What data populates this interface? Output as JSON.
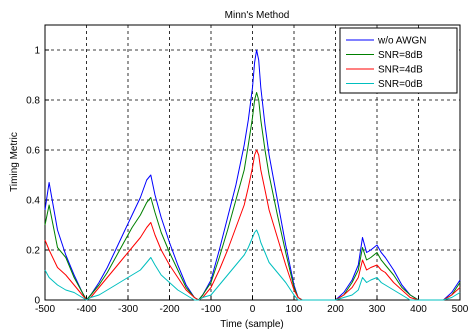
{
  "chart_data": {
    "type": "line",
    "title": "Minn's Method",
    "xlabel": "Time (sample)",
    "ylabel": "Timing Metric",
    "xlim": [
      -500,
      500
    ],
    "ylim": [
      0,
      1.1
    ],
    "xticks": [
      -500,
      -400,
      -300,
      -200,
      -100,
      0,
      100,
      200,
      300,
      400,
      500
    ],
    "yticks": [
      0,
      0.2,
      0.4,
      0.6,
      0.8,
      1
    ],
    "ytick_labels": [
      "0",
      "0.2",
      "0.4",
      "0.6",
      "0.8",
      "1"
    ],
    "grid": true,
    "legend_position": "top-right",
    "series": [
      {
        "name": "w/o AWGN",
        "color": "#0000ff",
        "x": [
          -500,
          -490,
          -470,
          -450,
          -430,
          -410,
          -400,
          -390,
          -370,
          -350,
          -330,
          -310,
          -290,
          -270,
          -255,
          -245,
          -235,
          -220,
          -200,
          -180,
          -160,
          -140,
          -130,
          -120,
          -100,
          -80,
          -60,
          -40,
          -20,
          -10,
          0,
          5,
          10,
          15,
          20,
          30,
          40,
          60,
          80,
          100,
          110,
          120,
          140,
          160,
          180,
          200,
          220,
          240,
          255,
          265,
          275,
          285,
          300,
          310,
          320,
          340,
          360,
          380,
          400,
          420,
          440,
          460,
          480,
          500
        ],
        "y": [
          0.36,
          0.47,
          0.28,
          0.18,
          0.1,
          0.03,
          0.0,
          0.02,
          0.07,
          0.13,
          0.2,
          0.27,
          0.34,
          0.41,
          0.48,
          0.5,
          0.42,
          0.33,
          0.23,
          0.14,
          0.06,
          0.01,
          0.0,
          0.02,
          0.08,
          0.2,
          0.33,
          0.46,
          0.62,
          0.72,
          0.85,
          0.95,
          1.0,
          0.96,
          0.85,
          0.7,
          0.58,
          0.4,
          0.22,
          0.06,
          0.01,
          0.0,
          0.0,
          0.0,
          0.0,
          0.0,
          0.03,
          0.08,
          0.14,
          0.25,
          0.19,
          0.2,
          0.22,
          0.19,
          0.17,
          0.12,
          0.06,
          0.02,
          0.0,
          0.0,
          0.0,
          0.0,
          0.03,
          0.08
        ]
      },
      {
        "name": "SNR=8dB",
        "color": "#008000",
        "x": [
          -500,
          -490,
          -470,
          -450,
          -430,
          -410,
          -400,
          -390,
          -370,
          -350,
          -330,
          -310,
          -290,
          -270,
          -255,
          -245,
          -235,
          -220,
          -200,
          -180,
          -160,
          -140,
          -130,
          -120,
          -100,
          -80,
          -60,
          -40,
          -20,
          -10,
          0,
          5,
          10,
          15,
          20,
          30,
          40,
          60,
          80,
          100,
          110,
          120,
          140,
          160,
          180,
          200,
          220,
          240,
          255,
          265,
          275,
          285,
          300,
          310,
          320,
          340,
          360,
          380,
          400,
          420,
          440,
          460,
          480,
          500
        ],
        "y": [
          0.3,
          0.38,
          0.21,
          0.17,
          0.09,
          0.03,
          0.0,
          0.02,
          0.06,
          0.11,
          0.17,
          0.23,
          0.29,
          0.34,
          0.39,
          0.41,
          0.35,
          0.27,
          0.19,
          0.12,
          0.05,
          0.01,
          0.0,
          0.02,
          0.07,
          0.17,
          0.28,
          0.4,
          0.52,
          0.62,
          0.73,
          0.8,
          0.83,
          0.8,
          0.72,
          0.6,
          0.5,
          0.34,
          0.19,
          0.05,
          0.01,
          0.0,
          0.0,
          0.0,
          0.0,
          0.0,
          0.02,
          0.07,
          0.12,
          0.21,
          0.16,
          0.17,
          0.19,
          0.16,
          0.14,
          0.1,
          0.05,
          0.02,
          0.0,
          0.0,
          0.0,
          0.0,
          0.02,
          0.07
        ]
      },
      {
        "name": "SNR=4dB",
        "color": "#ff0000",
        "x": [
          -500,
          -490,
          -470,
          -450,
          -430,
          -410,
          -400,
          -390,
          -370,
          -350,
          -330,
          -310,
          -290,
          -270,
          -255,
          -245,
          -235,
          -220,
          -200,
          -180,
          -160,
          -140,
          -130,
          -120,
          -100,
          -80,
          -60,
          -40,
          -20,
          -10,
          0,
          5,
          10,
          15,
          20,
          30,
          40,
          60,
          80,
          100,
          110,
          120,
          140,
          160,
          180,
          200,
          220,
          240,
          255,
          265,
          275,
          285,
          300,
          310,
          320,
          340,
          360,
          380,
          400,
          420,
          440,
          460,
          480,
          500
        ],
        "y": [
          0.24,
          0.2,
          0.13,
          0.1,
          0.06,
          0.02,
          0.0,
          0.01,
          0.05,
          0.09,
          0.13,
          0.17,
          0.21,
          0.25,
          0.29,
          0.31,
          0.26,
          0.2,
          0.14,
          0.09,
          0.04,
          0.01,
          0.0,
          0.01,
          0.05,
          0.12,
          0.2,
          0.29,
          0.38,
          0.45,
          0.53,
          0.58,
          0.6,
          0.58,
          0.52,
          0.44,
          0.36,
          0.25,
          0.14,
          0.04,
          0.01,
          0.0,
          0.0,
          0.0,
          0.0,
          0.0,
          0.02,
          0.05,
          0.09,
          0.16,
          0.12,
          0.13,
          0.14,
          0.12,
          0.11,
          0.07,
          0.04,
          0.01,
          0.0,
          0.0,
          0.0,
          0.0,
          0.02,
          0.05
        ]
      },
      {
        "name": "SNR=0dB",
        "color": "#00bfbf",
        "x": [
          -500,
          -490,
          -470,
          -450,
          -430,
          -410,
          -400,
          -390,
          -370,
          -350,
          -330,
          -310,
          -290,
          -270,
          -255,
          -245,
          -235,
          -220,
          -200,
          -180,
          -160,
          -140,
          -130,
          -120,
          -100,
          -80,
          -60,
          -40,
          -20,
          -10,
          0,
          5,
          10,
          15,
          20,
          30,
          40,
          60,
          80,
          100,
          110,
          120,
          140,
          160,
          180,
          200,
          220,
          240,
          255,
          265,
          275,
          285,
          300,
          310,
          320,
          340,
          360,
          380,
          400,
          420,
          440,
          460,
          480,
          500
        ],
        "y": [
          0.12,
          0.09,
          0.06,
          0.04,
          0.03,
          0.01,
          0.0,
          0.01,
          0.02,
          0.04,
          0.06,
          0.08,
          0.1,
          0.12,
          0.15,
          0.17,
          0.14,
          0.1,
          0.07,
          0.04,
          0.02,
          0.0,
          0.0,
          0.01,
          0.02,
          0.06,
          0.1,
          0.14,
          0.18,
          0.21,
          0.25,
          0.27,
          0.28,
          0.26,
          0.23,
          0.19,
          0.15,
          0.11,
          0.07,
          0.02,
          0.0,
          0.0,
          0.0,
          0.0,
          0.0,
          0.0,
          0.01,
          0.02,
          0.04,
          0.09,
          0.07,
          0.08,
          0.09,
          0.07,
          0.06,
          0.04,
          0.02,
          0.0,
          0.0,
          0.0,
          0.0,
          0.0,
          0.01,
          0.03
        ]
      }
    ]
  }
}
